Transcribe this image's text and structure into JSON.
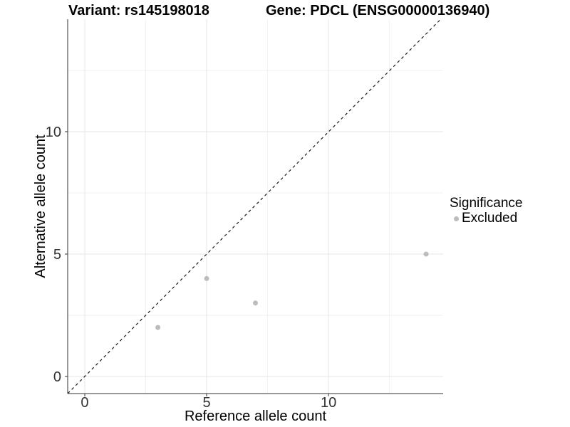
{
  "chart_data": {
    "type": "scatter",
    "title_left": "Variant: rs145198018",
    "title_right": "Gene: PDCL (ENSG00000136940)",
    "xlabel": "Reference allele count",
    "ylabel": "Alternative allele count",
    "xlim": [
      -0.7,
      14.7
    ],
    "ylim": [
      -0.7,
      14.6
    ],
    "xticks": [
      {
        "value": 0,
        "label": "0"
      },
      {
        "value": 5,
        "label": "5"
      },
      {
        "value": 10,
        "label": "10"
      }
    ],
    "yticks": [
      {
        "value": 0,
        "label": "0"
      },
      {
        "value": 5,
        "label": "5"
      },
      {
        "value": 10,
        "label": "10"
      }
    ],
    "minor_xticks": [
      2.5,
      7.5,
      12.5
    ],
    "minor_yticks": [
      2.5,
      7.5,
      12.5
    ],
    "grid": true,
    "identity_line": {
      "style": "dashed",
      "equation": "y = x",
      "color": "#1a1a1a"
    },
    "series": [
      {
        "name": "Excluded",
        "color": "#bcbcbc",
        "points": [
          {
            "x": 3,
            "y": 2
          },
          {
            "x": 5,
            "y": 4
          },
          {
            "x": 7,
            "y": 3
          },
          {
            "x": 14,
            "y": 5
          }
        ]
      }
    ],
    "legend": {
      "title": "Significance",
      "position": "right",
      "items": [
        {
          "label": "Excluded",
          "color": "#bcbcbc"
        }
      ]
    },
    "colors": {
      "point": "#bcbcbc",
      "grid_major": "#e6e6e6",
      "grid_minor": "#f2f2f2",
      "axis": "#333333",
      "tick_label": "#333333",
      "text": "#000000",
      "background": "#ffffff"
    }
  }
}
